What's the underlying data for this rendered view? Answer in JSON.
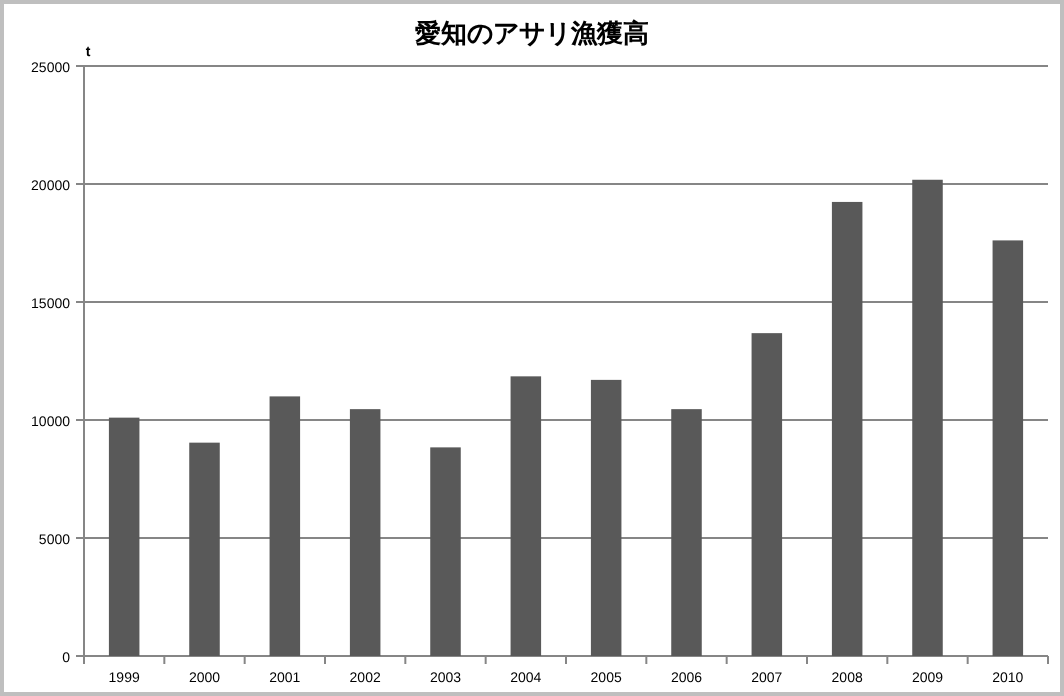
{
  "chart_data": {
    "type": "bar",
    "title": "愛知のアサリ漁獲高",
    "ylabel": "t",
    "categories": [
      "1999",
      "2000",
      "2001",
      "2002",
      "2003",
      "2004",
      "2005",
      "2006",
      "2007",
      "2008",
      "2009",
      "2010"
    ],
    "values": [
      10100,
      9040,
      11000,
      10460,
      8840,
      11850,
      11700,
      10460,
      13680,
      19240,
      20180,
      17610
    ],
    "color": "#595959",
    "ylim": [
      0,
      25000
    ],
    "yticks": [
      0,
      5000,
      10000,
      15000,
      20000,
      25000
    ],
    "grid": "y"
  }
}
